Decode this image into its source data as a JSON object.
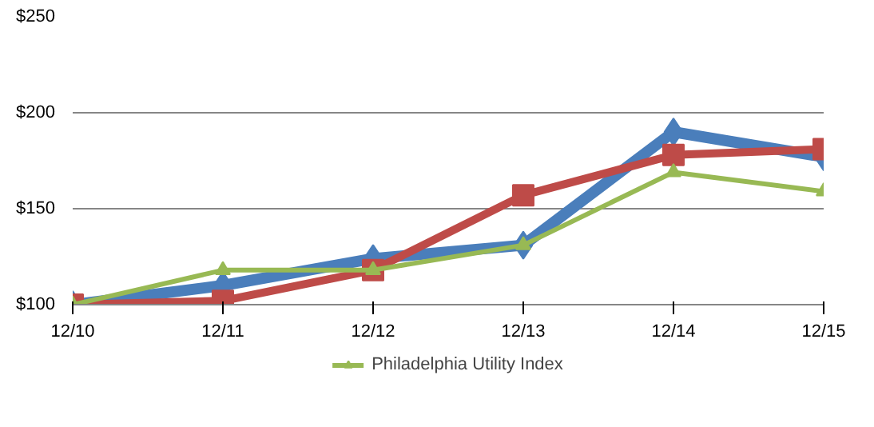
{
  "chart_data": {
    "type": "line",
    "categories": [
      "12/10",
      "12/11",
      "12/12",
      "12/13",
      "12/14",
      "12/15"
    ],
    "series": [
      {
        "color": "#4a7ebb",
        "marker": "diamond",
        "values": [
          100,
          110,
          124,
          131,
          190,
          177
        ]
      },
      {
        "color": "#be4b48",
        "marker": "square",
        "values": [
          100,
          102,
          118,
          157,
          178,
          181
        ]
      },
      {
        "name": "Philadelphia Utility Index",
        "color": "#98b954",
        "marker": "triangle",
        "values": [
          100,
          118,
          118,
          131,
          169,
          159
        ]
      }
    ],
    "ylim": [
      100,
      250
    ],
    "yticks": [
      {
        "value": 100,
        "label": "$100"
      },
      {
        "value": 150,
        "label": "$150"
      },
      {
        "value": 200,
        "label": "$200"
      },
      {
        "value": 250,
        "label": "$250"
      }
    ],
    "grid": "y",
    "legend": "bottom"
  }
}
